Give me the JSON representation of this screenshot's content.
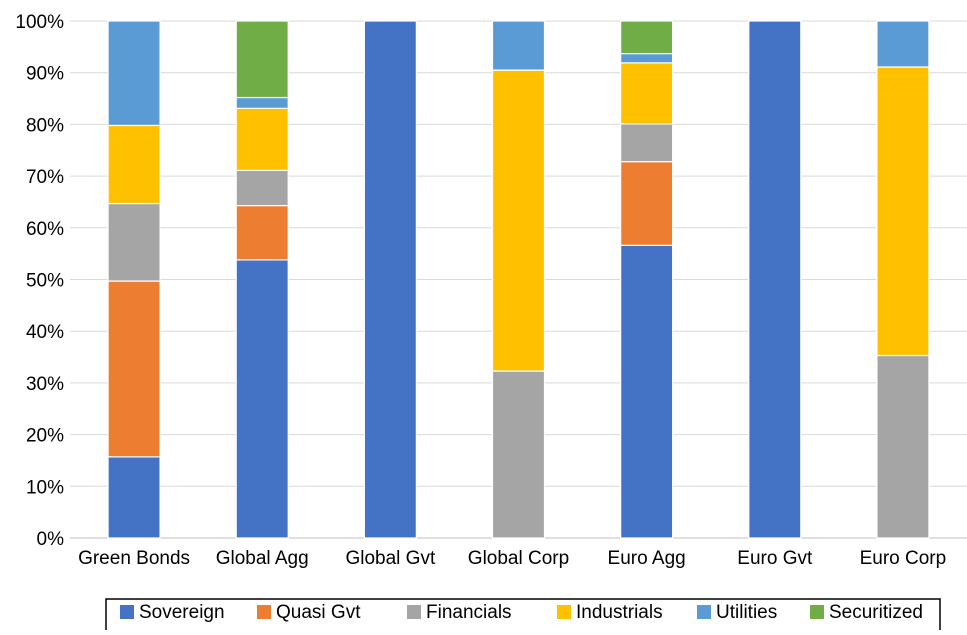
{
  "chart_data": {
    "type": "bar",
    "stacked": true,
    "categories": [
      "Green Bonds",
      "Global Agg",
      "Global Gvt",
      "Global Corp",
      "Euro Agg",
      "Euro Gvt",
      "Euro Corp"
    ],
    "series": [
      {
        "name": "Sovereign",
        "color": "#4472C4",
        "values": [
          15.7,
          53.8,
          100,
          0,
          56.6,
          100,
          0
        ]
      },
      {
        "name": "Quasi Gvt",
        "color": "#ED7D31",
        "values": [
          34.0,
          10.5,
          0,
          0,
          16.2,
          0,
          0
        ]
      },
      {
        "name": "Financials",
        "color": "#A5A5A5",
        "values": [
          15.0,
          6.8,
          0,
          32.3,
          7.3,
          0,
          35.3
        ]
      },
      {
        "name": "Industrials",
        "color": "#FFC000",
        "values": [
          15.1,
          12.0,
          0,
          58.2,
          11.8,
          0,
          55.8
        ]
      },
      {
        "name": "Utilities",
        "color": "#5B9BD5",
        "values": [
          20.2,
          2.1,
          0,
          9.5,
          1.8,
          0,
          8.9
        ]
      },
      {
        "name": "Securitized",
        "color": "#70AD47",
        "values": [
          0,
          14.8,
          0,
          0,
          6.3,
          0,
          0
        ]
      }
    ],
    "y_ticks": [
      "0%",
      "10%",
      "20%",
      "30%",
      "40%",
      "50%",
      "60%",
      "70%",
      "80%",
      "90%",
      "100%"
    ],
    "ylim": [
      0,
      100
    ],
    "grid": true,
    "legend_position": "bottom"
  }
}
